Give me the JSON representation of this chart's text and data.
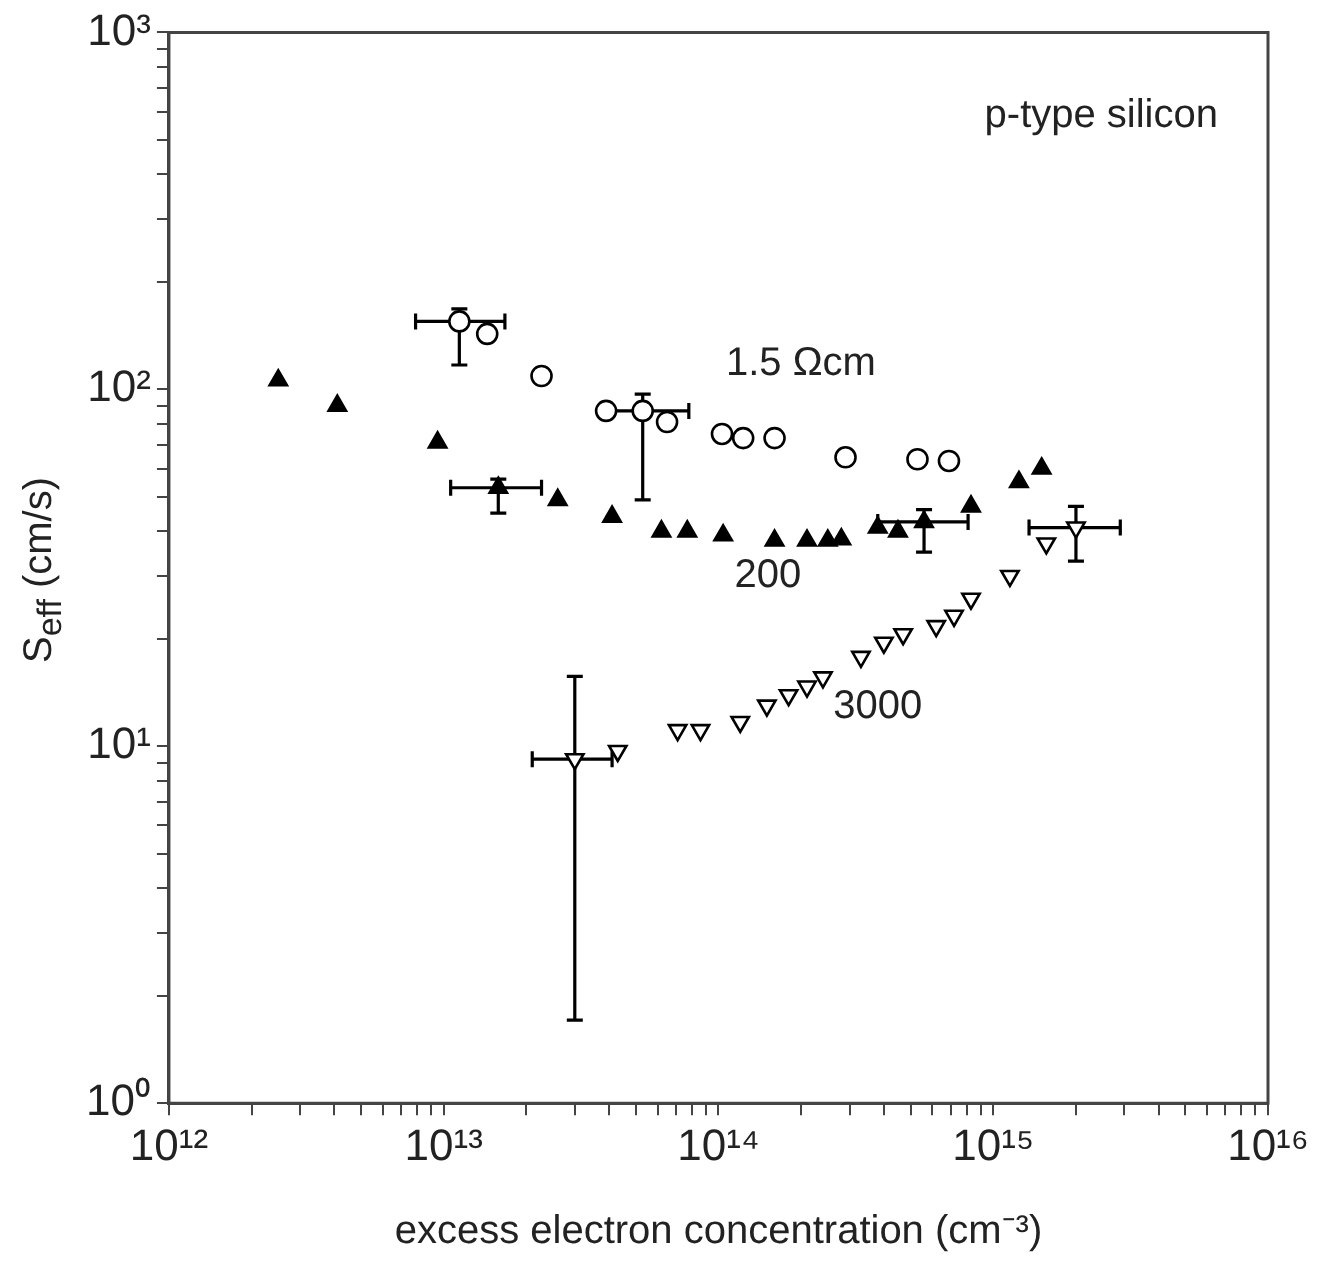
{
  "chart_data": {
    "type": "scatter",
    "xlabel": "excess electron concentration (cm⁻³)",
    "ylabel": "S$_{eff}$ (cm/s)",
    "log": "xy",
    "grid": false,
    "legend": false,
    "xlim": [
      1000000000000.0,
      1e+16
    ],
    "ylim": [
      1,
      1000
    ],
    "xticks": [
      {
        "value": 1000000000000.0,
        "label": "10¹²"
      },
      {
        "value": 2000000000000.0,
        "label": null
      },
      {
        "value": 3000000000000.0,
        "label": null
      },
      {
        "value": 4000000000000.0,
        "label": null
      },
      {
        "value": 5000000000000.0,
        "label": null
      },
      {
        "value": 6000000000000.0,
        "label": null
      },
      {
        "value": 7000000000000.0,
        "label": null
      },
      {
        "value": 8000000000000.0,
        "label": null
      },
      {
        "value": 9000000000000.0,
        "label": null
      },
      {
        "value": 10000000000000.0,
        "label": "10¹³"
      },
      {
        "value": 20000000000000.0,
        "label": null
      },
      {
        "value": 30000000000000.0,
        "label": null
      },
      {
        "value": 40000000000000.0,
        "label": null
      },
      {
        "value": 50000000000000.0,
        "label": null
      },
      {
        "value": 60000000000000.0,
        "label": null
      },
      {
        "value": 70000000000000.0,
        "label": null
      },
      {
        "value": 80000000000000.0,
        "label": null
      },
      {
        "value": 90000000000000.0,
        "label": null
      },
      {
        "value": 100000000000000.0,
        "label": "10¹⁴"
      },
      {
        "value": 200000000000000.0,
        "label": null
      },
      {
        "value": 300000000000000.0,
        "label": null
      },
      {
        "value": 400000000000000.0,
        "label": null
      },
      {
        "value": 500000000000000.0,
        "label": null
      },
      {
        "value": 600000000000000.0,
        "label": null
      },
      {
        "value": 700000000000000.0,
        "label": null
      },
      {
        "value": 800000000000000.0,
        "label": null
      },
      {
        "value": 900000000000000.0,
        "label": null
      },
      {
        "value": 1000000000000000.0,
        "label": "10¹⁵"
      },
      {
        "value": 2000000000000000.0,
        "label": null
      },
      {
        "value": 3000000000000000.0,
        "label": null
      },
      {
        "value": 4000000000000000.0,
        "label": null
      },
      {
        "value": 5000000000000000.0,
        "label": null
      },
      {
        "value": 6000000000000000.0,
        "label": null
      },
      {
        "value": 7000000000000000.0,
        "label": null
      },
      {
        "value": 8000000000000000.0,
        "label": null
      },
      {
        "value": 9000000000000000.0,
        "label": null
      },
      {
        "value": 1e+16,
        "label": "10¹⁶"
      }
    ],
    "yticks": [
      {
        "value": 1,
        "label": "10⁰"
      },
      {
        "value": 2,
        "label": null
      },
      {
        "value": 3,
        "label": null
      },
      {
        "value": 4,
        "label": null
      },
      {
        "value": 5,
        "label": null
      },
      {
        "value": 6,
        "label": null
      },
      {
        "value": 7,
        "label": null
      },
      {
        "value": 8,
        "label": null
      },
      {
        "value": 9,
        "label": null
      },
      {
        "value": 10,
        "label": "10¹"
      },
      {
        "value": 20,
        "label": null
      },
      {
        "value": 30,
        "label": null
      },
      {
        "value": 40,
        "label": null
      },
      {
        "value": 50,
        "label": null
      },
      {
        "value": 60,
        "label": null
      },
      {
        "value": 70,
        "label": null
      },
      {
        "value": 80,
        "label": null
      },
      {
        "value": 90,
        "label": null
      },
      {
        "value": 100,
        "label": "10²"
      },
      {
        "value": 200,
        "label": null
      },
      {
        "value": 300,
        "label": null
      },
      {
        "value": 400,
        "label": null
      },
      {
        "value": 500,
        "label": null
      },
      {
        "value": 600,
        "label": null
      },
      {
        "value": 700,
        "label": null
      },
      {
        "value": 800,
        "label": null
      },
      {
        "value": 900,
        "label": null
      },
      {
        "value": 1000,
        "label": "10³"
      }
    ],
    "annotations": [
      "p-type silicon"
    ],
    "series": [
      {
        "name": "1.5 Ωcm",
        "color": "#000000",
        "marker": "circle",
        "x": [
          11400000000000.0,
          14400000000000.0,
          22700000000000.0,
          39000000000000.0,
          53000000000000.0,
          65000000000000.0,
          103000000000000.0,
          123000000000000.0,
          160000000000000.0,
          290000000000000.0,
          530000000000000.0,
          690000000000000.0
        ],
        "values": [
          155,
          143,
          109,
          87,
          87,
          81,
          75,
          73,
          73,
          64.5,
          63.7,
          63
        ],
        "errors": [
          [
            117,
            168
          ],
          null,
          null,
          null,
          [
            49,
            97
          ],
          null,
          null,
          null,
          null,
          null,
          null,
          null
        ],
        "xerrors": [
          [
            7900000000000.0,
            16700000000000.0
          ],
          null,
          null,
          null,
          [
            37000000000000.0,
            78000000000000.0
          ],
          null,
          null,
          null,
          null,
          null,
          null,
          null
        ]
      },
      {
        "name": "200",
        "color": "#000000",
        "marker": "triangle",
        "x": [
          2500000000000.0,
          4100000000000.0,
          9500000000000.0,
          15800000000000.0,
          26000000000000.0,
          41000000000000.0,
          62000000000000.0,
          77000000000000.0,
          104000000000000.0,
          160000000000000.0,
          210000000000000.0,
          250000000000000.0,
          280000000000000.0,
          380000000000000.0,
          450000000000000.0,
          560000000000000.0,
          830000000000000.0,
          1240000000000000.0,
          1500000000000000.0
        ],
        "values": [
          106,
          90,
          71,
          53,
          49,
          44,
          40,
          40,
          39,
          37.7,
          37.7,
          37.7,
          38,
          41,
          40,
          42.5,
          47,
          55,
          60
        ],
        "errors": [
          null,
          null,
          null,
          [
            45,
            56
          ],
          null,
          null,
          null,
          null,
          null,
          null,
          null,
          null,
          null,
          null,
          null,
          [
            35,
            46
          ],
          null,
          null,
          null
        ],
        "xerrors": [
          null,
          null,
          null,
          [
            10600000000000.0,
            22700000000000.0
          ],
          null,
          null,
          null,
          null,
          null,
          null,
          null,
          null,
          null,
          null,
          null,
          [
            380000000000000.0,
            810000000000000.0
          ],
          null,
          null,
          null
        ]
      },
      {
        "name": "3000",
        "color": "#000000",
        "marker": "triangle-down",
        "x": [
          30000000000000.0,
          43000000000000.0,
          71000000000000.0,
          86000000000000.0,
          120000000000000.0,
          150000000000000.0,
          180000000000000.0,
          210000000000000.0,
          240000000000000.0,
          330000000000000.0,
          400000000000000.0,
          470000000000000.0,
          620000000000000.0,
          720000000000000.0,
          830000000000000.0,
          1150000000000000.0,
          1560000000000000.0,
          2000000000000000.0
        ],
        "values": [
          9.2,
          9.7,
          11.1,
          11.1,
          11.7,
          13,
          13.9,
          14.7,
          15.6,
          17.8,
          19.5,
          20.6,
          21.7,
          23.2,
          25.9,
          30,
          37,
          41
        ],
        "errors": [
          [
            1.71,
            15.7
          ],
          null,
          null,
          null,
          null,
          null,
          null,
          null,
          null,
          null,
          null,
          null,
          null,
          null,
          null,
          null,
          null,
          [
            33,
            47
          ]
        ],
        "xerrors": [
          [
            21000000000000.0,
            41000000000000.0
          ],
          null,
          null,
          null,
          null,
          null,
          null,
          null,
          null,
          null,
          null,
          null,
          null,
          null,
          null,
          null,
          null,
          [
            1350000000000000.0,
            2900000000000000.0
          ]
        ]
      }
    ]
  }
}
